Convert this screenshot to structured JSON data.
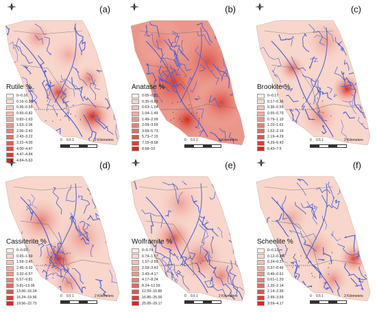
{
  "panels": [
    {
      "letter": "(a)",
      "legend_title": "Rutile %",
      "classes": [
        "0–0.16",
        "0.16–0.36",
        "0.36–0.55",
        "0.55–0.82",
        "0.82–1.63",
        "1.63–2.06",
        "2.06–2.43",
        "2.43–3.22",
        "3.22–4.00",
        "4.00–4.47",
        "4.47–4.84",
        "4.84–5.63"
      ]
    },
    {
      "letter": "(b)",
      "legend_title": "Anatase %",
      "classes": [
        "0.05–0.35",
        "0.35–0.63",
        "0.63–1.04",
        "1.04–1.49",
        "1.49–2.09",
        "2.09–3.59",
        "3.59–5.73",
        "5.73–7.15",
        "7.15–8.58",
        "8.58–10"
      ]
    },
    {
      "letter": "(c)",
      "legend_title": "Brookite %",
      "classes": [
        "0–0.17",
        "0.17–0.36",
        "0.36–0.55",
        "0.55–0.79",
        "0.79–1.10",
        "1.10–1.62",
        "1.62–2.19",
        "2.19–4.29",
        "4.29–6.43",
        "6.43–7.5"
      ]
    },
    {
      "letter": "(d)",
      "legend_title": "Cassiterite %",
      "classes": [
        "0–0.65",
        "0.65–1.59",
        "1.59–2.45",
        "2.45–3.32",
        "3.32–6.57",
        "6.57–9.81",
        "9.81–13.06",
        "13.06–16.24",
        "16.24–19.56",
        "19.56–22.73"
      ]
    },
    {
      "letter": "(e)",
      "legend_title": "Wolframite %",
      "classes": [
        "0–0.74",
        "0.74–1.57",
        "1.57–2.59",
        "2.59–3.43",
        "3.43–4.17",
        "4.17–8.24",
        "8.24–12.59",
        "12.59–16.85",
        "16.85–25.00",
        "25.00–29.17"
      ]
    },
    {
      "letter": "(f)",
      "legend_title": "Scheelite %",
      "classes": [
        "0–0.12",
        "0.12–0.24",
        "0.24–0.37",
        "0.37–0.49",
        "0.49–0.61",
        "0.61–1.20",
        "1.20–2.14",
        "2.14–2.99",
        "2.99–3.59",
        "3.59–4.17"
      ]
    }
  ],
  "scale": {
    "ticks": [
      "0",
      "0.5",
      "1",
      "2 Kilometers"
    ]
  },
  "colors": {
    "ramp_light": "#fdeee4",
    "ramp_dark": "#d42a1e",
    "river": "#4a5fd0",
    "road": "#6b6b6b"
  },
  "icons": {
    "north": "north-arrow-icon"
  }
}
